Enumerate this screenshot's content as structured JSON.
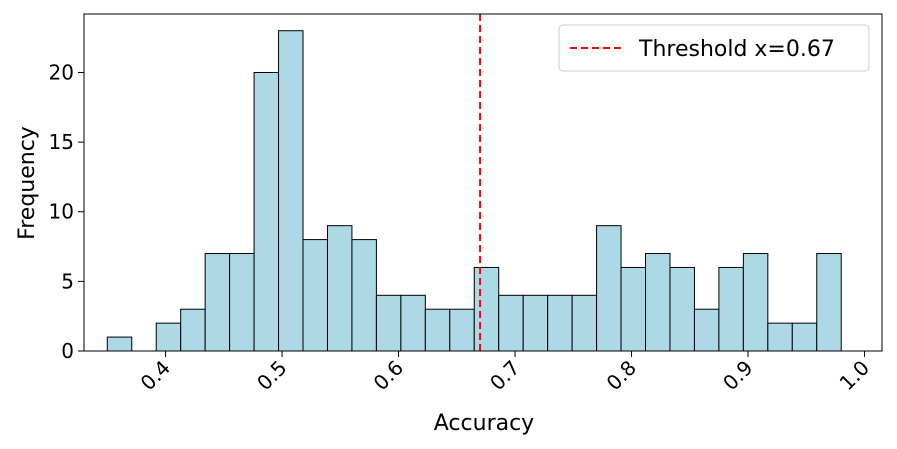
{
  "chart_data": {
    "type": "bar",
    "subtype": "histogram",
    "xlabel": "Accuracy",
    "ylabel": "Frequency",
    "xlim": [
      0.33,
      1.015
    ],
    "ylim": [
      0,
      24.2
    ],
    "x_ticks": [
      0.4,
      0.5,
      0.6,
      0.7,
      0.8,
      0.9,
      1.0
    ],
    "x_tick_labels": [
      "0.4",
      "0.5",
      "0.6",
      "0.7",
      "0.8",
      "0.9",
      "1.0"
    ],
    "x_tick_rotation_deg": 45,
    "y_ticks": [
      0,
      5,
      10,
      15,
      20
    ],
    "y_tick_labels": [
      "0",
      "5",
      "10",
      "15",
      "20"
    ],
    "bin_start": 0.35,
    "bin_width": 0.021,
    "counts": [
      1,
      0,
      2,
      3,
      7,
      7,
      20,
      23,
      8,
      9,
      8,
      4,
      4,
      3,
      3,
      6,
      4,
      4,
      4,
      4,
      9,
      6,
      7,
      6,
      3,
      6,
      7,
      2,
      2,
      7
    ],
    "bar_color": "#add8e6",
    "bar_edge_color": "#000000",
    "threshold": {
      "value": 0.67,
      "label": "Threshold x=0.67",
      "color": "#ff0000",
      "style": "dashed"
    },
    "legend": {
      "position": "top-right"
    },
    "grid": false
  }
}
